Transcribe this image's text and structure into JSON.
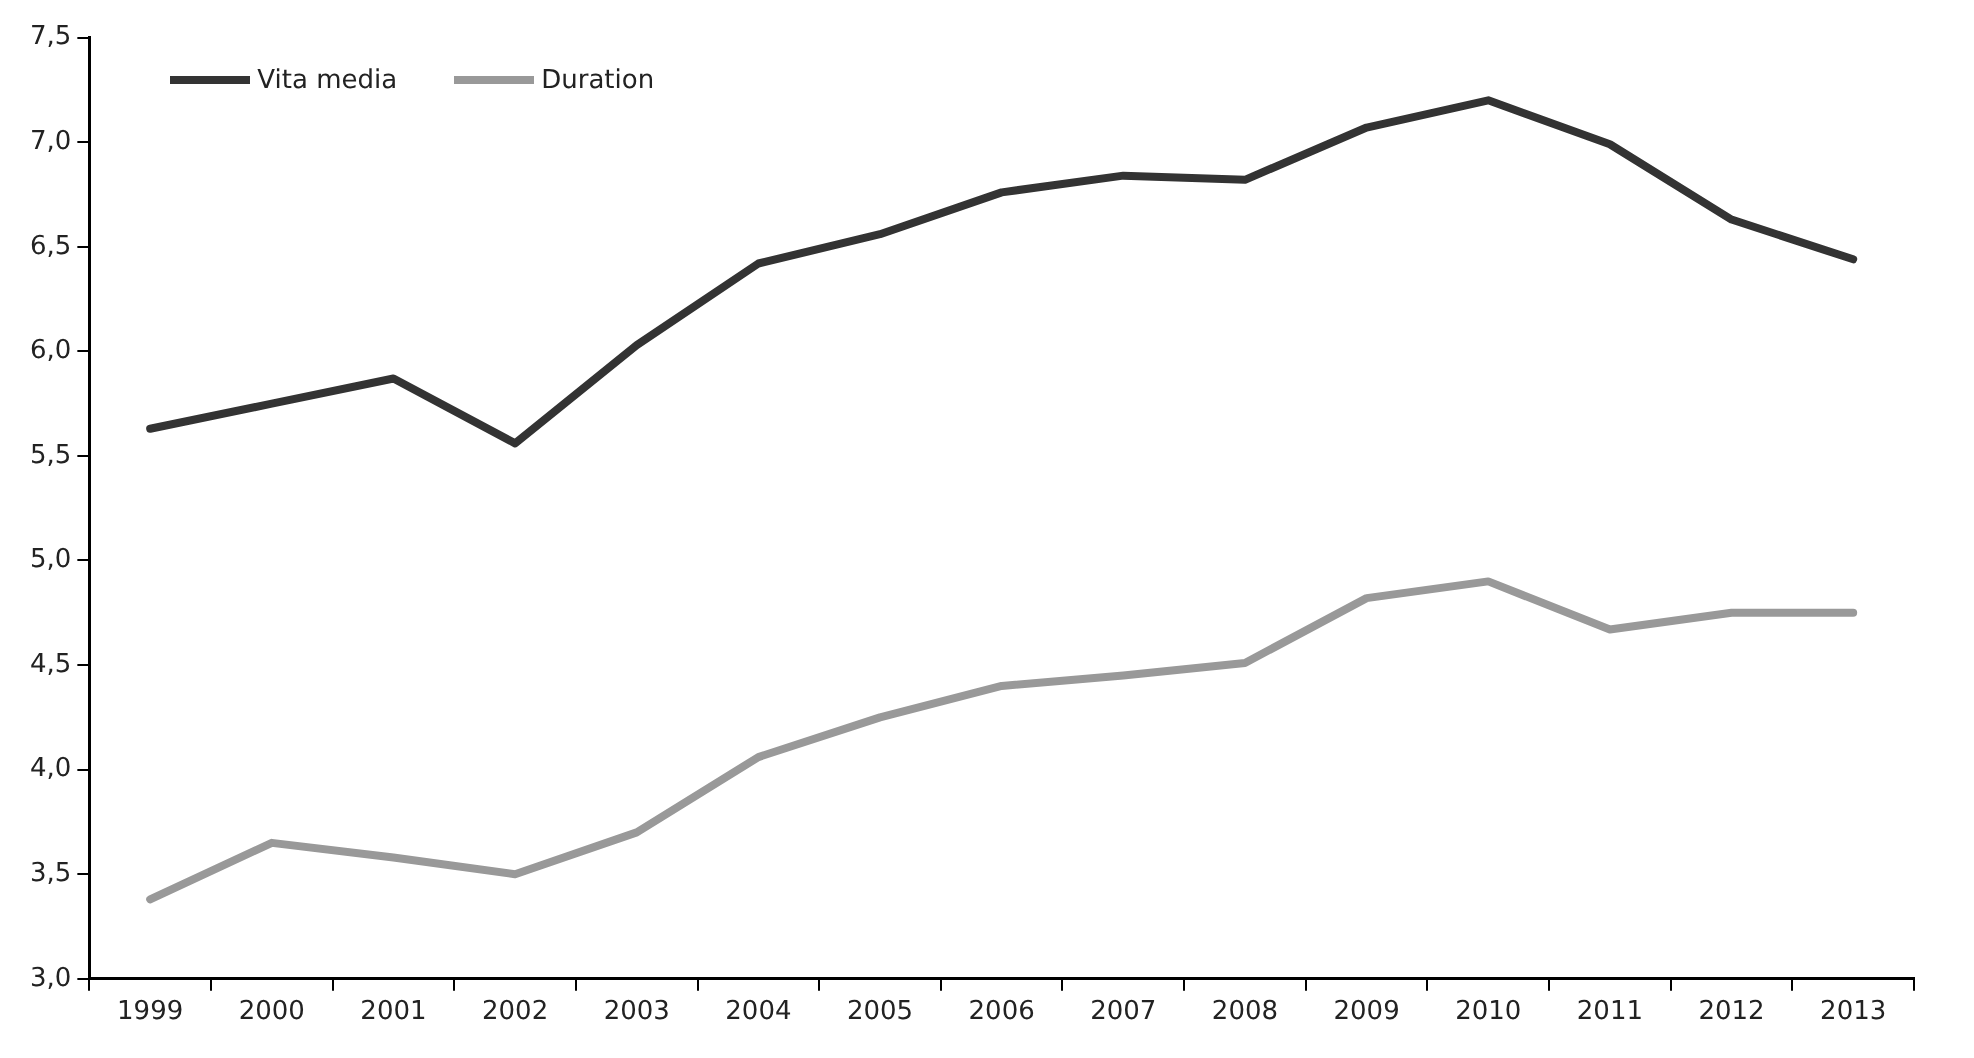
{
  "chart_data": {
    "type": "line",
    "categories": [
      "1999",
      "2000",
      "2001",
      "2002",
      "2003",
      "2004",
      "2005",
      "2006",
      "2007",
      "2008",
      "2009",
      "2010",
      "2011",
      "2012",
      "2013"
    ],
    "series": [
      {
        "name": "Vita media",
        "color": "#333333",
        "values": [
          5.63,
          5.75,
          5.87,
          5.56,
          6.03,
          6.42,
          6.56,
          6.76,
          6.84,
          6.82,
          7.07,
          7.2,
          6.99,
          6.63,
          6.44
        ]
      },
      {
        "name": "Duration",
        "color": "#999999",
        "values": [
          3.38,
          3.65,
          3.58,
          3.5,
          3.7,
          4.06,
          4.25,
          4.4,
          4.45,
          4.51,
          4.82,
          4.9,
          4.67,
          4.75,
          4.75
        ]
      }
    ],
    "ylim": [
      3,
      7.5
    ],
    "yticks": [
      {
        "value": 3,
        "label": "3,0"
      },
      {
        "value": 3.5,
        "label": "3,5"
      },
      {
        "value": 4,
        "label": "4,0"
      },
      {
        "value": 4.5,
        "label": "4,5"
      },
      {
        "value": 5,
        "label": "5,0"
      },
      {
        "value": 5.5,
        "label": "5,5"
      },
      {
        "value": 6,
        "label": "6,0"
      },
      {
        "value": 6.5,
        "label": "6,5"
      },
      {
        "value": 7,
        "label": "7,0"
      },
      {
        "value": 7.5,
        "label": "7,5"
      }
    ],
    "grid": false,
    "legend": "top left",
    "marker": "none",
    "line_style": "solid"
  }
}
